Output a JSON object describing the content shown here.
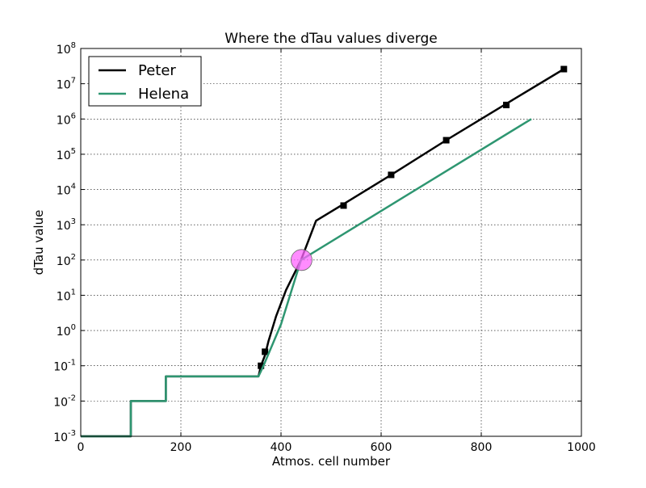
{
  "chart_data": {
    "type": "line",
    "title": "Where the dTau values diverge",
    "xlabel": "Atmos. cell number",
    "ylabel": "dTau value",
    "xlim": [
      0,
      1000
    ],
    "ylim": [
      0.001,
      100000000
    ],
    "yscale": "log",
    "grid": true,
    "legend": "top-left",
    "x_ticks": [
      {
        "value": 0,
        "label": "0"
      },
      {
        "value": 200,
        "label": "200"
      },
      {
        "value": 400,
        "label": "400"
      },
      {
        "value": 600,
        "label": "600"
      },
      {
        "value": 800,
        "label": "800"
      },
      {
        "value": 1000,
        "label": "1000"
      }
    ],
    "y_ticks": [
      {
        "value": 0.001,
        "base": "10",
        "exp": "-3"
      },
      {
        "value": 0.01,
        "base": "10",
        "exp": "-2"
      },
      {
        "value": 0.1,
        "base": "10",
        "exp": "-1"
      },
      {
        "value": 1,
        "base": "10",
        "exp": "0"
      },
      {
        "value": 10,
        "base": "10",
        "exp": "1"
      },
      {
        "value": 100,
        "base": "10",
        "exp": "2"
      },
      {
        "value": 1000,
        "base": "10",
        "exp": "3"
      },
      {
        "value": 10000,
        "base": "10",
        "exp": "4"
      },
      {
        "value": 100000,
        "base": "10",
        "exp": "5"
      },
      {
        "value": 1000000,
        "base": "10",
        "exp": "6"
      },
      {
        "value": 10000000,
        "base": "10",
        "exp": "7"
      },
      {
        "value": 100000000,
        "base": "10",
        "exp": "8"
      }
    ],
    "series": [
      {
        "name": "Peter",
        "color": "#000000",
        "x": [
          0,
          100,
          100,
          170,
          170,
          355,
          360,
          368,
          375,
          390,
          410,
          440,
          470,
          520,
          620,
          730,
          850,
          965
        ],
        "y": [
          0.001,
          0.001,
          0.01,
          0.01,
          0.05,
          0.05,
          0.1,
          0.2,
          0.5,
          2.5,
          14,
          100,
          1300,
          3500,
          26000,
          250000,
          2700000,
          26000000
        ],
        "marker_x": [
          360,
          368,
          525,
          620,
          730,
          850,
          965
        ],
        "marker_y": [
          0.1,
          0.25,
          3500,
          26000,
          250000,
          2500000,
          26000000
        ]
      },
      {
        "name": "Helena",
        "color": "#2e9671",
        "x": [
          0,
          100,
          100,
          170,
          170,
          355,
          365,
          400,
          440,
          900
        ],
        "y": [
          0.001,
          0.001,
          0.01,
          0.01,
          0.05,
          0.05,
          0.1,
          1.5,
          100,
          1000000
        ]
      }
    ],
    "highlight": {
      "x": 441,
      "y": 100,
      "color": "#ff66ff"
    }
  }
}
